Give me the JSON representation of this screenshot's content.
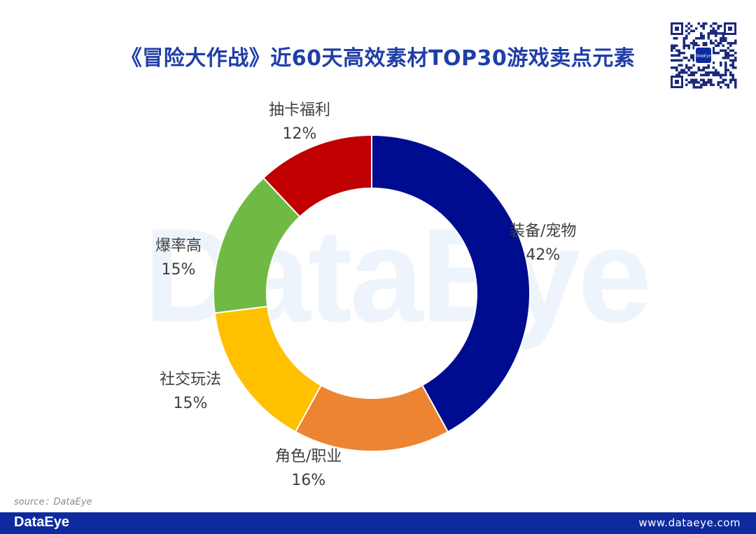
{
  "header": {
    "title": "《冒险大作战》近60天高效素材TOP30游戏卖点元素"
  },
  "watermark": {
    "text": "DataEye"
  },
  "qr_code": {
    "center_label": "DataEye"
  },
  "colors": {
    "title": "#1f3ea8",
    "footer_bg": "#0f2a9e",
    "label_text": "#404040"
  },
  "chart_data": {
    "type": "pie",
    "variant": "donut",
    "title": "《冒险大作战》近60天高效素材TOP30游戏卖点元素",
    "slices": [
      {
        "label": "装备/宠物",
        "value": 42,
        "value_label": "42%",
        "color": "#000c8f"
      },
      {
        "label": "角色/职业",
        "value": 16,
        "value_label": "16%",
        "color": "#ed8432"
      },
      {
        "label": "社交玩法",
        "value": 15,
        "value_label": "15%",
        "color": "#ffc000"
      },
      {
        "label": "爆率高",
        "value": 15,
        "value_label": "15%",
        "color": "#70ba44"
      },
      {
        "label": "抽卡福利",
        "value": 12,
        "value_label": "12%",
        "color": "#c00000"
      }
    ],
    "legend": "none"
  },
  "source": {
    "text": "source：DataEye"
  },
  "footer": {
    "brand": "DataEye",
    "url": "www.dataeye.com"
  }
}
